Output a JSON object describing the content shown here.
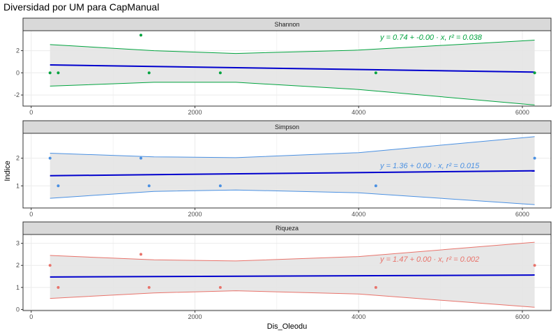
{
  "title": "Diversidad por UM para CapManual",
  "chart_data": {
    "type": "scatter",
    "title": "Diversidad por UM para CapManual",
    "xlabel": "Dis_Oleodu",
    "ylabel": "Indice",
    "xlim": [
      -100,
      6350
    ],
    "x_ticks": [
      0,
      2000,
      4000,
      6000
    ],
    "grid": true,
    "facets": [
      {
        "name": "Shannon",
        "color": "#00a33e",
        "ylim": [
          -3,
          3.8
        ],
        "y_ticks": [
          -2,
          0,
          2
        ],
        "points": [
          [
            230,
            0
          ],
          [
            330,
            0
          ],
          [
            1340,
            3.4
          ],
          [
            1440,
            0
          ],
          [
            2310,
            0
          ],
          [
            4210,
            0
          ],
          [
            6150,
            0
          ]
        ],
        "fit": {
          "intercept": 0.74,
          "slope": -0.00011,
          "x_range": [
            230,
            6150
          ]
        },
        "band": {
          "upper": [
            [
              230,
              2.55
            ],
            [
              1500,
              2.0
            ],
            [
              2500,
              1.75
            ],
            [
              4000,
              2.05
            ],
            [
              6150,
              2.95
            ]
          ],
          "lower": [
            [
              230,
              -1.2
            ],
            [
              1500,
              -0.85
            ],
            [
              2500,
              -0.85
            ],
            [
              4000,
              -1.5
            ],
            [
              6150,
              -2.9
            ]
          ]
        },
        "equation": "y = 0.74 + -0.00 · x,  r² = 0.038"
      },
      {
        "name": "Simpson",
        "color": "#4a90e2",
        "ylim": [
          0.2,
          2.9
        ],
        "y_ticks": [
          1,
          2
        ],
        "points": [
          [
            230,
            2
          ],
          [
            330,
            1
          ],
          [
            1340,
            2
          ],
          [
            1440,
            1
          ],
          [
            2310,
            1
          ],
          [
            4210,
            1
          ],
          [
            6150,
            2
          ]
        ],
        "fit": {
          "intercept": 1.36,
          "slope": 3e-05,
          "x_range": [
            230,
            6150
          ]
        },
        "band": {
          "upper": [
            [
              230,
              2.18
            ],
            [
              1500,
              2.05
            ],
            [
              2500,
              2.02
            ],
            [
              4000,
              2.2
            ],
            [
              6150,
              2.78
            ]
          ],
          "lower": [
            [
              230,
              0.55
            ],
            [
              1500,
              0.8
            ],
            [
              2500,
              0.85
            ],
            [
              4000,
              0.75
            ],
            [
              6150,
              0.32
            ]
          ]
        },
        "equation": "y = 1.36 + 0.00 · x,  r² = 0.015"
      },
      {
        "name": "Riqueza",
        "color": "#e8736b",
        "ylim": [
          -0.05,
          3.4
        ],
        "y_ticks": [
          0,
          1,
          2,
          3
        ],
        "points": [
          [
            230,
            2
          ],
          [
            330,
            1
          ],
          [
            1340,
            2.5
          ],
          [
            1440,
            1
          ],
          [
            2310,
            1
          ],
          [
            4210,
            1
          ],
          [
            6150,
            2
          ]
        ],
        "fit": {
          "intercept": 1.47,
          "slope": 1.5e-05,
          "x_range": [
            230,
            6150
          ]
        },
        "band": {
          "upper": [
            [
              230,
              2.45
            ],
            [
              1500,
              2.25
            ],
            [
              2500,
              2.2
            ],
            [
              4000,
              2.4
            ],
            [
              6150,
              3.05
            ]
          ],
          "lower": [
            [
              230,
              0.5
            ],
            [
              1500,
              0.75
            ],
            [
              2500,
              0.85
            ],
            [
              4000,
              0.7
            ],
            [
              6150,
              0.1
            ]
          ]
        },
        "equation": "y = 1.47 + 0.00 · x,  r² = 0.002"
      }
    ]
  },
  "colors": {
    "fit_line": "#0000cd",
    "band_fill": "#e4e4e4",
    "strip_fill": "#d9d9d9",
    "panel_border": "#333333",
    "grid": "#ebebeb"
  }
}
